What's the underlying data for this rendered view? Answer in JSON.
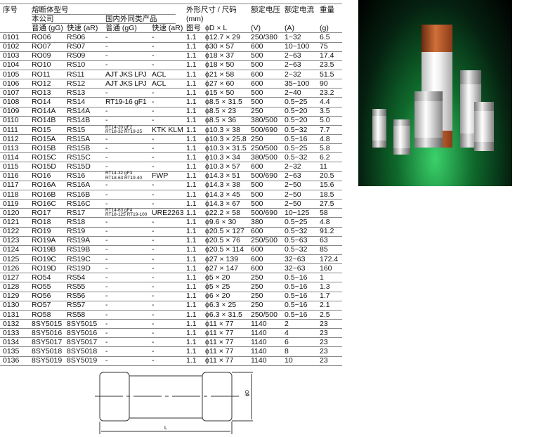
{
  "header": {
    "seq": "序号",
    "fuse_model": "熔断体型号",
    "own": "本公司",
    "domestic": "国内外同类产品",
    "dims": "外形尺寸 / 尺码",
    "dims_unit": "(mm)",
    "voltage": "额定电压",
    "voltage_unit": "(V)",
    "current": "额定电流",
    "current_unit": "(A)",
    "weight": "重量",
    "weight_unit": "(g)",
    "normal_gG": "普通 (gG)",
    "fast_aR": "快速 (aR)",
    "normal_gG2": "普通 (gG)",
    "fast_aR2": "快速 (aR)",
    "fig": "图号",
    "dxl": "ϕD × L"
  },
  "rows": [
    [
      "0101",
      "RO06",
      "RS06",
      "-",
      "-",
      "1.1",
      "ϕ12.7 × 29",
      "250/380",
      "1~32",
      "6.5"
    ],
    [
      "0102",
      "RO07",
      "RS07",
      "-",
      "-",
      "1.1",
      "ϕ30 × 57",
      "600",
      "10~100",
      "75"
    ],
    [
      "0103",
      "RO09",
      "RS09",
      "-",
      "-",
      "1.1",
      "ϕ18 × 37",
      "500",
      "2~63",
      "17.4"
    ],
    [
      "0104",
      "RO10",
      "RS10",
      "-",
      "-",
      "1.1",
      "ϕ18 × 50",
      "500",
      "2~63",
      "23.5"
    ],
    [
      "0105",
      "RO11",
      "RS11",
      "AJT JKS LPJ",
      "ACL",
      "1.1",
      "ϕ21 × 58",
      "600",
      "2~32",
      "51.5"
    ],
    [
      "0106",
      "RO12",
      "RS12",
      "AJT JKS LPJ",
      "ACL",
      "1.1",
      "ϕ27 × 60",
      "600",
      "35~100",
      "90"
    ],
    [
      "0107",
      "RO13",
      "RS13",
      "-",
      "-",
      "1.1",
      "ϕ15 × 50",
      "500",
      "2~40",
      "23.2"
    ],
    [
      "0108",
      "RO14",
      "RS14",
      "RT19-16 gF1",
      "-",
      "1.1",
      "ϕ8.5 × 31.5",
      "500",
      "0.5~25",
      "4.4"
    ],
    [
      "0109",
      "RO14A",
      "RS14A",
      "-",
      "-",
      "1.1",
      "ϕ8.5 × 23",
      "250",
      "0.5~20",
      "3.5"
    ],
    [
      "0110",
      "RO14B",
      "RS14B",
      "-",
      "-",
      "1.1",
      "ϕ8.5 × 36",
      "380/500",
      "0.5~20",
      "5.0"
    ],
    [
      "0111",
      "RO15",
      "RS15",
      "RT14-20 gF2\nRT18-32 RT19-25",
      "KTK KLM",
      "1.1",
      "ϕ10.3 × 38",
      "500/690",
      "0.5~32",
      "7.7"
    ],
    [
      "0112",
      "RO15A",
      "RS15A",
      "-",
      "-",
      "1.1",
      "ϕ10.3 × 25.8",
      "250",
      "0.5~16",
      "4.8"
    ],
    [
      "0113",
      "RO15B",
      "RS15B",
      "-",
      "-",
      "1.1",
      "ϕ10.3 × 31.5",
      "250/500",
      "0.5~25",
      "5.8"
    ],
    [
      "0114",
      "RO15C",
      "RS15C",
      "-",
      "-",
      "1.1",
      "ϕ10.3 × 34",
      "380/500",
      "0.5~32",
      "6.2"
    ],
    [
      "0115",
      "RO15D",
      "RS15D",
      "-",
      "-",
      "1.1",
      "ϕ10.3 × 57",
      "600",
      "2~32",
      "11"
    ],
    [
      "0116",
      "RO16",
      "RS16",
      "RT14-32 gF3\nRT18-63 RT19-40",
      "FWP",
      "1.1",
      "ϕ14.3 × 51",
      "500/690",
      "2~63",
      "20.5"
    ],
    [
      "0117",
      "RO16A",
      "RS16A",
      "-",
      "-",
      "1.1",
      "ϕ14.3 × 38",
      "500",
      "2~50",
      "15.6"
    ],
    [
      "0118",
      "RO16B",
      "RS16B",
      "-",
      "-",
      "1.1",
      "ϕ14.3 × 45",
      "500",
      "2~50",
      "18.5"
    ],
    [
      "0119",
      "RO16C",
      "RS16C",
      "-",
      "-",
      "1.1",
      "ϕ14.3 × 67",
      "500",
      "2~50",
      "27.5"
    ],
    [
      "0120",
      "RO17",
      "RS17",
      "RT14-63 gF4\nRT18-125 RT19-100",
      "URE2263",
      "1.1",
      "ϕ22.2 × 58",
      "500/690",
      "10~125",
      "58"
    ],
    [
      "0121",
      "RO18",
      "RS18",
      "-",
      "-",
      "1.1",
      "ϕ9.6 × 30",
      "380",
      "0.5~25",
      "4.8"
    ],
    [
      "0122",
      "RO19",
      "RS19",
      "-",
      "-",
      "1.1",
      "ϕ20.5 × 127",
      "600",
      "0.5~32",
      "91.2"
    ],
    [
      "0123",
      "RO19A",
      "RS19A",
      "-",
      "-",
      "1.1",
      "ϕ20.5 × 76",
      "250/500",
      "0.5~63",
      "63"
    ],
    [
      "0124",
      "RO19B",
      "RS19B",
      "-",
      "-",
      "1.1",
      "ϕ20.5 × 114",
      "600",
      "0.5~32",
      "85"
    ],
    [
      "0125",
      "RO19C",
      "RS19C",
      "-",
      "-",
      "1.1",
      "ϕ27 × 139",
      "600",
      "32~63",
      "172.4"
    ],
    [
      "0126",
      "RO19D",
      "RS19D",
      "-",
      "-",
      "1.1",
      "ϕ27 × 147",
      "600",
      "32~63",
      "160"
    ],
    [
      "0127",
      "RO54",
      "RS54",
      "-",
      "-",
      "1.1",
      "ϕ5 × 20",
      "250",
      "0.5~16",
      "1"
    ],
    [
      "0128",
      "RO55",
      "RS55",
      "-",
      "-",
      "1.1",
      "ϕ5 × 25",
      "250",
      "0.5~16",
      "1.3"
    ],
    [
      "0129",
      "RO56",
      "RS56",
      "-",
      "-",
      "1.1",
      "ϕ6 × 20",
      "250",
      "0.5~16",
      "1.7"
    ],
    [
      "0130",
      "RO57",
      "RS57",
      "-",
      "-",
      "1.1",
      "ϕ6.3 × 25",
      "250",
      "0.5~16",
      "2.1"
    ],
    [
      "0131",
      "RO58",
      "RS58",
      "-",
      "-",
      "1.1",
      "ϕ6.3 × 31.5",
      "250/500",
      "0.5~16",
      "2.5"
    ],
    [
      "0132",
      "8SY5015",
      "8SY5015",
      "-",
      "-",
      "1.1",
      "ϕ11 × 77",
      "1140",
      "2",
      "23"
    ],
    [
      "0133",
      "8SY5016",
      "8SY5016",
      "-",
      "-",
      "1.1",
      "ϕ11 × 77",
      "1140",
      "4",
      "23"
    ],
    [
      "0134",
      "8SY5017",
      "8SY5017",
      "-",
      "-",
      "1.1",
      "ϕ11 × 77",
      "1140",
      "6",
      "23"
    ],
    [
      "0135",
      "8SY5018",
      "8SY5018",
      "-",
      "-",
      "1.1",
      "ϕ11 × 77",
      "1140",
      "8",
      "23"
    ],
    [
      "0136",
      "8SY5019",
      "8SY5019",
      "-",
      "-",
      "1.1",
      "ϕ11 × 77",
      "1140",
      "10",
      "23"
    ]
  ],
  "drawing": {
    "diameter_label": "ϕD",
    "length_label": "L"
  }
}
